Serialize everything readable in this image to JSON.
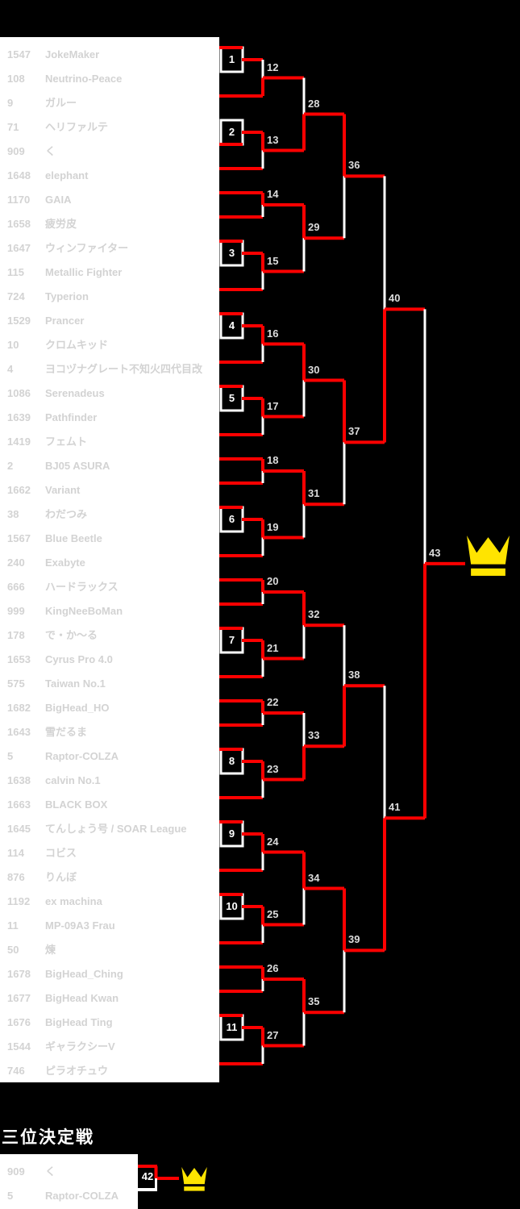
{
  "colors": {
    "background": "#000000",
    "panel": "#FFFFFF",
    "player_text": "#D3D3D3",
    "line_red": "#FF0000",
    "line_white": "#FFFFFF",
    "label_text": "#DCDCDC",
    "box_number_text": "#FFFFFF",
    "crown": "#FFE400"
  },
  "icons": {
    "champion": "crown-icon",
    "third_place_winner": "crown-icon"
  },
  "players": [
    {
      "seed": "1547",
      "name": "JokeMaker"
    },
    {
      "seed": "108",
      "name": "Neutrino-Peace"
    },
    {
      "seed": "9",
      "name": "ガルー"
    },
    {
      "seed": "71",
      "name": "ヘリファルテ"
    },
    {
      "seed": "909",
      "name": "く"
    },
    {
      "seed": "1648",
      "name": "elephant"
    },
    {
      "seed": "1170",
      "name": "GAIA"
    },
    {
      "seed": "1658",
      "name": "疲労皮"
    },
    {
      "seed": "1647",
      "name": "ウィンファイター"
    },
    {
      "seed": "115",
      "name": "Metallic Fighter"
    },
    {
      "seed": "724",
      "name": "Typerion"
    },
    {
      "seed": "1529",
      "name": "Prancer"
    },
    {
      "seed": "10",
      "name": "クロムキッド"
    },
    {
      "seed": "4",
      "name": "ヨコヅナグレート不知火四代目改"
    },
    {
      "seed": "1086",
      "name": "Serenadeus"
    },
    {
      "seed": "1639",
      "name": "Pathfinder"
    },
    {
      "seed": "1419",
      "name": "フェムト"
    },
    {
      "seed": "2",
      "name": "BJ05 ASURA"
    },
    {
      "seed": "1662",
      "name": "Variant"
    },
    {
      "seed": "38",
      "name": "わだつみ"
    },
    {
      "seed": "1567",
      "name": "Blue Beetle"
    },
    {
      "seed": "240",
      "name": "Exabyte"
    },
    {
      "seed": "666",
      "name": "ハードラックス"
    },
    {
      "seed": "999",
      "name": "KingNeeBoMan"
    },
    {
      "seed": "178",
      "name": "で・か〜る"
    },
    {
      "seed": "1653",
      "name": "Cyrus Pro 4.0"
    },
    {
      "seed": "575",
      "name": "Taiwan No.1"
    },
    {
      "seed": "1682",
      "name": "BigHead_HO"
    },
    {
      "seed": "1643",
      "name": "雪だるま"
    },
    {
      "seed": "5",
      "name": "Raptor-COLZA"
    },
    {
      "seed": "1638",
      "name": "calvin No.1"
    },
    {
      "seed": "1663",
      "name": "BLACK BOX"
    },
    {
      "seed": "1645",
      "name": "てんしょう号 / SOAR League"
    },
    {
      "seed": "114",
      "name": "コビス"
    },
    {
      "seed": "876",
      "name": "りんぼ"
    },
    {
      "seed": "1192",
      "name": "ex machina"
    },
    {
      "seed": "11",
      "name": "MP-09A3 Frau"
    },
    {
      "seed": "50",
      "name": "煉"
    },
    {
      "seed": "1678",
      "name": "BigHead_Ching"
    },
    {
      "seed": "1677",
      "name": "BigHead Kwan"
    },
    {
      "seed": "1676",
      "name": "BigHead Ting"
    },
    {
      "seed": "1544",
      "name": "ギャラクシーV"
    },
    {
      "seed": "746",
      "name": "ピラオチュウ"
    }
  ],
  "bracket": {
    "first_round": [
      {
        "number": 1,
        "rows": [
          1,
          2
        ],
        "winner": "top"
      },
      {
        "number": 2,
        "rows": [
          4,
          5
        ],
        "winner": "bottom"
      },
      {
        "number": 3,
        "rows": [
          9,
          10
        ],
        "winner": "top"
      },
      {
        "number": 4,
        "rows": [
          12,
          13
        ],
        "winner": "top"
      },
      {
        "number": 5,
        "rows": [
          15,
          16
        ],
        "winner": "top"
      },
      {
        "number": 6,
        "rows": [
          20,
          21
        ],
        "winner": "top"
      },
      {
        "number": 7,
        "rows": [
          25,
          26
        ],
        "winner": "top"
      },
      {
        "number": 8,
        "rows": [
          30,
          31
        ],
        "winner": "top"
      },
      {
        "number": 9,
        "rows": [
          33,
          34
        ],
        "winner": "top"
      },
      {
        "number": 10,
        "rows": [
          36,
          37
        ],
        "winner": "top"
      },
      {
        "number": 11,
        "rows": [
          41,
          42
        ],
        "winner": "top"
      }
    ],
    "later_rounds": [
      [
        {
          "number": 12,
          "feeds": [
            "W1",
            "P3"
          ],
          "winner": "bottom"
        },
        {
          "number": 13,
          "feeds": [
            "W2",
            "P6"
          ],
          "winner": "top"
        },
        {
          "number": 14,
          "feeds": [
            "P7",
            "P8"
          ],
          "winner": "top"
        },
        {
          "number": 15,
          "feeds": [
            "W3",
            "P11"
          ],
          "winner": "top"
        },
        {
          "number": 16,
          "feeds": [
            "W4",
            "P14"
          ],
          "winner": "top"
        },
        {
          "number": 17,
          "feeds": [
            "W5",
            "P17"
          ],
          "winner": "top"
        },
        {
          "number": 18,
          "feeds": [
            "P18",
            "P19"
          ],
          "winner": "top"
        },
        {
          "number": 19,
          "feeds": [
            "W6",
            "P22"
          ],
          "winner": "top"
        },
        {
          "number": 20,
          "feeds": [
            "P23",
            "P24"
          ],
          "winner": "top"
        },
        {
          "number": 21,
          "feeds": [
            "W7",
            "P27"
          ],
          "winner": "top"
        },
        {
          "number": 22,
          "feeds": [
            "P28",
            "P29"
          ],
          "winner": "top"
        },
        {
          "number": 23,
          "feeds": [
            "W8",
            "P32"
          ],
          "winner": "top"
        },
        {
          "number": 24,
          "feeds": [
            "W9",
            "P35"
          ],
          "winner": "top"
        },
        {
          "number": 25,
          "feeds": [
            "W10",
            "P38"
          ],
          "winner": "top"
        },
        {
          "number": 26,
          "feeds": [
            "P39",
            "P40"
          ],
          "winner": "top"
        },
        {
          "number": 27,
          "feeds": [
            "W11",
            "P43"
          ],
          "winner": "top"
        }
      ],
      [
        {
          "number": 28,
          "feeds": [
            "W12",
            "W13"
          ],
          "winner": "bottom"
        },
        {
          "number": 29,
          "feeds": [
            "W14",
            "W15"
          ],
          "winner": "top"
        },
        {
          "number": 30,
          "feeds": [
            "W16",
            "W17"
          ],
          "winner": "top"
        },
        {
          "number": 31,
          "feeds": [
            "W18",
            "W19"
          ],
          "winner": "top"
        },
        {
          "number": 32,
          "feeds": [
            "W20",
            "W21"
          ],
          "winner": "top"
        },
        {
          "number": 33,
          "feeds": [
            "W22",
            "W23"
          ],
          "winner": "bottom"
        },
        {
          "number": 34,
          "feeds": [
            "W24",
            "W25"
          ],
          "winner": "top"
        },
        {
          "number": 35,
          "feeds": [
            "W26",
            "W27"
          ],
          "winner": "top"
        }
      ],
      [
        {
          "number": 36,
          "feeds": [
            "W28",
            "W29"
          ],
          "winner": "top"
        },
        {
          "number": 37,
          "feeds": [
            "W30",
            "W31"
          ],
          "winner": "top"
        },
        {
          "number": 38,
          "feeds": [
            "W32",
            "W33"
          ],
          "winner": "bottom"
        },
        {
          "number": 39,
          "feeds": [
            "W34",
            "W35"
          ],
          "winner": "top"
        }
      ],
      [
        {
          "number": 40,
          "feeds": [
            "W36",
            "W37"
          ],
          "winner": "bottom"
        },
        {
          "number": 41,
          "feeds": [
            "W38",
            "W39"
          ],
          "winner": "bottom"
        }
      ],
      [
        {
          "number": 43,
          "feeds": [
            "W40",
            "W41"
          ],
          "winner": "bottom"
        }
      ]
    ]
  },
  "third_place": {
    "title": "三位決定戦",
    "number": 42,
    "players": [
      {
        "seed": "909",
        "name": "く"
      },
      {
        "seed": "5",
        "name": "Raptor-COLZA"
      }
    ],
    "winner": "top"
  }
}
